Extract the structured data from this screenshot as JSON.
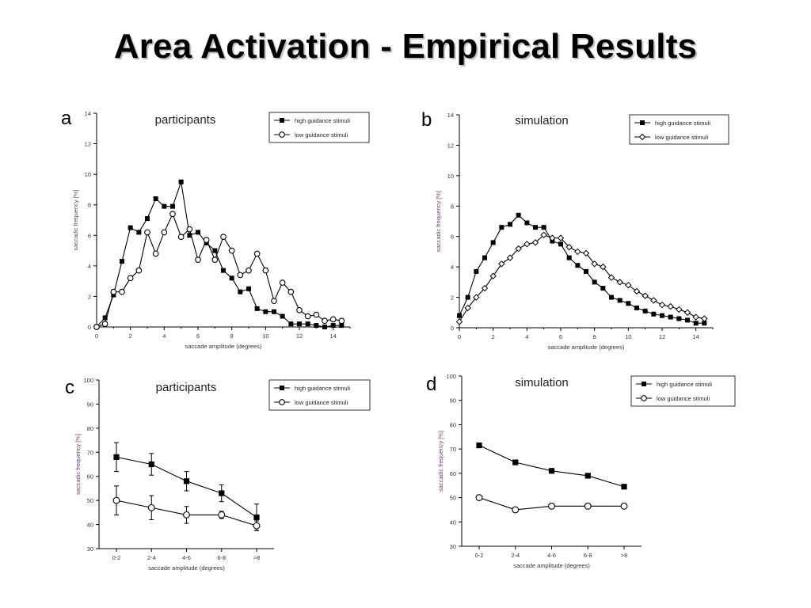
{
  "slide": {
    "title": "Area Activation - Empirical Results"
  },
  "chart_data": [
    {
      "panel": "a",
      "type": "line",
      "title": "participants",
      "xlabel": "saccade amplitude (degrees)",
      "ylabel": "saccadic frequency [%]",
      "xlim": [
        0,
        15
      ],
      "ylim": [
        0,
        14
      ],
      "xticks": [
        0,
        2,
        4,
        6,
        8,
        10,
        12,
        14
      ],
      "yticks": [
        0,
        2,
        4,
        6,
        8,
        10,
        12,
        14
      ],
      "legend_position": "top-right",
      "x": [
        0,
        0.5,
        1,
        1.5,
        2,
        2.5,
        3,
        3.5,
        4,
        4.5,
        5,
        5.5,
        6,
        6.5,
        7,
        7.5,
        8,
        8.5,
        9,
        9.5,
        10,
        10.5,
        11,
        11.5,
        12,
        12.5,
        13,
        13.5,
        14,
        14.5
      ],
      "series": [
        {
          "name": "high guidance stimuli",
          "marker": "filled-square",
          "values": [
            0,
            0.6,
            2.1,
            4.3,
            6.5,
            6.2,
            7.1,
            8.4,
            7.9,
            7.9,
            9.5,
            6.0,
            6.2,
            5.5,
            5.0,
            3.7,
            3.2,
            2.3,
            2.5,
            1.2,
            1.0,
            1.0,
            0.7,
            0.2,
            0.2,
            0.2,
            0.1,
            0,
            0.1,
            0.1
          ]
        },
        {
          "name": "low guidance stimuli",
          "marker": "open-circle",
          "values": [
            0,
            0.2,
            2.3,
            2.3,
            3.2,
            3.7,
            6.2,
            4.8,
            6.2,
            7.4,
            5.9,
            6.4,
            4.4,
            5.7,
            4.4,
            5.9,
            5.0,
            3.4,
            3.7,
            4.8,
            3.7,
            1.7,
            2.9,
            2.3,
            1.1,
            0.7,
            0.8,
            0.4,
            0.5,
            0.4
          ]
        }
      ]
    },
    {
      "panel": "b",
      "type": "line",
      "title": "simulation",
      "xlabel": "saccade amplitude (degrees)",
      "ylabel": "saccadic frequency [%]",
      "xlim": [
        0,
        15
      ],
      "ylim": [
        0,
        14
      ],
      "xticks": [
        0,
        2,
        4,
        6,
        8,
        10,
        12,
        14
      ],
      "yticks": [
        0,
        2,
        4,
        6,
        8,
        10,
        12,
        14
      ],
      "legend_position": "top-right",
      "x": [
        0,
        0.5,
        1,
        1.5,
        2,
        2.5,
        3,
        3.5,
        4,
        4.5,
        5,
        5.5,
        6,
        6.5,
        7,
        7.5,
        8,
        8.5,
        9,
        9.5,
        10,
        10.5,
        11,
        11.5,
        12,
        12.5,
        13,
        13.5,
        14,
        14.5
      ],
      "series": [
        {
          "name": "high guidance stimuli",
          "marker": "filled-square",
          "values": [
            0.8,
            2.0,
            3.7,
            4.6,
            5.6,
            6.6,
            6.8,
            7.4,
            6.9,
            6.6,
            6.6,
            5.7,
            5.5,
            4.6,
            4.1,
            3.7,
            3.0,
            2.6,
            2.0,
            1.8,
            1.6,
            1.3,
            1.1,
            0.9,
            0.8,
            0.7,
            0.6,
            0.5,
            0.3,
            0.3
          ]
        },
        {
          "name": "low guidance stimuli",
          "marker": "open-diamond",
          "values": [
            0.4,
            1.3,
            2.0,
            2.6,
            3.4,
            4.2,
            4.6,
            5.2,
            5.5,
            5.6,
            6.1,
            5.9,
            5.9,
            5.3,
            5.0,
            4.9,
            4.2,
            4.0,
            3.3,
            3.0,
            2.8,
            2.4,
            2.1,
            1.8,
            1.5,
            1.4,
            1.2,
            1.0,
            0.7,
            0.6
          ]
        }
      ]
    },
    {
      "panel": "c",
      "type": "line",
      "title": "participants",
      "xlabel": "saccade amplitude (degrees)",
      "ylabel": "saccadic frequency [%]",
      "categories": [
        "0-2",
        "2-4",
        "4-6",
        "6-8",
        ">8"
      ],
      "ylim": [
        30,
        100
      ],
      "yticks": [
        30,
        40,
        50,
        60,
        70,
        80,
        90,
        100
      ],
      "legend_position": "top-right",
      "series": [
        {
          "name": "high guidance stimuli",
          "marker": "filled-square",
          "values": [
            68,
            65,
            58,
            53,
            43
          ],
          "error": [
            6,
            4.5,
            4,
            3.5,
            5.5
          ]
        },
        {
          "name": "low guidance stimuli",
          "marker": "open-circle",
          "values": [
            50,
            47,
            44,
            44,
            39.5
          ],
          "error": [
            6,
            5,
            3.5,
            1.5,
            2
          ]
        }
      ]
    },
    {
      "panel": "d",
      "type": "line",
      "title": "simulation",
      "xlabel": "saccade amplitude (degrees)",
      "ylabel": "saccadic frequency [%]",
      "categories": [
        "0-2",
        "2-4",
        "4-6",
        "6-8",
        ">8"
      ],
      "ylim": [
        30,
        100
      ],
      "yticks": [
        30,
        40,
        50,
        60,
        70,
        80,
        90,
        100
      ],
      "legend_position": "top-right",
      "series": [
        {
          "name": "high guidance stimuli",
          "marker": "filled-square",
          "values": [
            71.5,
            64.5,
            61,
            59,
            54.5
          ]
        },
        {
          "name": "low guidance stimuli",
          "marker": "open-circle",
          "values": [
            50,
            45,
            46.5,
            46.5,
            46.5
          ]
        }
      ]
    }
  ]
}
